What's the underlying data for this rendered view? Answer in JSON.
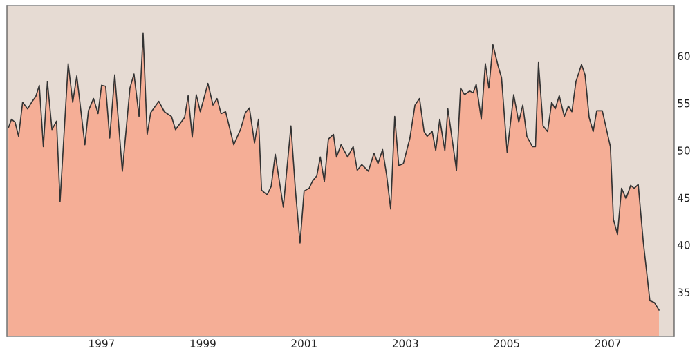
{
  "chart_data": {
    "type": "area",
    "x": [
      1995.16,
      1995.22,
      1995.29,
      1995.36,
      1995.44,
      1995.54,
      1995.63,
      1995.7,
      1995.77,
      1995.85,
      1995.93,
      1996.02,
      1996.11,
      1996.18,
      1996.34,
      1996.43,
      1996.51,
      1996.67,
      1996.74,
      1996.84,
      1996.93,
      1997.0,
      1997.08,
      1997.16,
      1997.26,
      1997.41,
      1997.56,
      1997.64,
      1997.74,
      1997.82,
      1997.9,
      1997.97,
      1998.13,
      1998.24,
      1998.38,
      1998.46,
      1998.64,
      1998.71,
      1998.79,
      1998.87,
      1998.95,
      1999.1,
      1999.2,
      1999.28,
      1999.36,
      1999.45,
      1999.61,
      1999.75,
      1999.84,
      1999.92,
      2000.02,
      2000.1,
      2000.16,
      2000.27,
      2000.35,
      2000.43,
      2000.59,
      2000.74,
      2000.83,
      2000.92,
      2001.0,
      2001.1,
      2001.17,
      2001.25,
      2001.32,
      2001.4,
      2001.48,
      2001.58,
      2001.64,
      2001.73,
      2001.86,
      2001.97,
      2002.05,
      2002.14,
      2002.27,
      2002.38,
      2002.46,
      2002.55,
      2002.63,
      2002.71,
      2002.79,
      2002.87,
      2002.96,
      2003.09,
      2003.19,
      2003.28,
      2003.37,
      2003.43,
      2003.53,
      2003.6,
      2003.68,
      2003.78,
      2003.84,
      2004.01,
      2004.09,
      2004.17,
      2004.27,
      2004.34,
      2004.4,
      2004.5,
      2004.58,
      2004.65,
      2004.73,
      2004.83,
      2004.9,
      2005.01,
      2005.14,
      2005.24,
      2005.32,
      2005.4,
      2005.51,
      2005.57,
      2005.63,
      2005.72,
      2005.81,
      2005.89,
      2005.96,
      2006.04,
      2006.14,
      2006.22,
      2006.29,
      2006.37,
      2006.48,
      2006.55,
      2006.63,
      2006.71,
      2006.78,
      2006.89,
      2007.05,
      2007.11,
      2007.19,
      2007.27,
      2007.36,
      2007.45,
      2007.52,
      2007.6,
      2007.7,
      2007.83,
      2007.92,
      2008.01
    ],
    "series": [
      {
        "color": "#f5ae96",
        "values": [
          52.4,
          53.3,
          53.0,
          51.5,
          55.1,
          54.4,
          55.2,
          55.7,
          56.9,
          50.4,
          57.3,
          52.2,
          53.1,
          44.6,
          59.2,
          55.1,
          57.9,
          50.6,
          54.2,
          55.5,
          53.9,
          56.9,
          56.8,
          51.3,
          58.0,
          47.8,
          56.6,
          58.1,
          53.6,
          62.4,
          51.7,
          54.0,
          55.2,
          54.1,
          53.6,
          52.2,
          53.5,
          55.8,
          51.4,
          55.9,
          54.1,
          57.1,
          54.8,
          55.5,
          53.9,
          54.1,
          50.6,
          52.3,
          54.0,
          54.5,
          50.8,
          53.3,
          45.8,
          45.3,
          46.2,
          49.6,
          44.0,
          52.6,
          45.7,
          40.2,
          45.7,
          46.0,
          46.8,
          47.3,
          49.3,
          46.7,
          51.2,
          51.7,
          49.3,
          50.6,
          49.3,
          50.4,
          47.9,
          48.5,
          47.8,
          49.7,
          48.6,
          50.1,
          47.4,
          43.8,
          53.6,
          48.4,
          48.6,
          51.3,
          54.8,
          55.5,
          52.0,
          51.5,
          52.0,
          50.0,
          53.3,
          50.0,
          54.4,
          47.9,
          56.6,
          55.9,
          56.3,
          56.1,
          57.0,
          53.3,
          59.2,
          56.6,
          61.2,
          59.0,
          57.7,
          49.8,
          55.9,
          53.0,
          54.8,
          51.5,
          50.4,
          50.4,
          59.3,
          52.6,
          52.0,
          55.1,
          54.4,
          55.8,
          53.6,
          54.7,
          54.1,
          57.3,
          59.1,
          58.0,
          53.5,
          52.0,
          54.2,
          54.2,
          50.4,
          42.7,
          41.1,
          46.0,
          44.9,
          46.3,
          46.0,
          46.4,
          40.3,
          34.1,
          33.9,
          33.1
        ]
      }
    ],
    "xlim": [
      1995.13,
      2008.31
    ],
    "ylim": [
      30.32,
      65.34
    ],
    "xticks": [
      1997,
      1999,
      2001,
      2003,
      2005,
      2007
    ],
    "yticks": [
      35,
      40,
      45,
      50,
      55,
      60
    ],
    "grid": false,
    "legend": false
  }
}
